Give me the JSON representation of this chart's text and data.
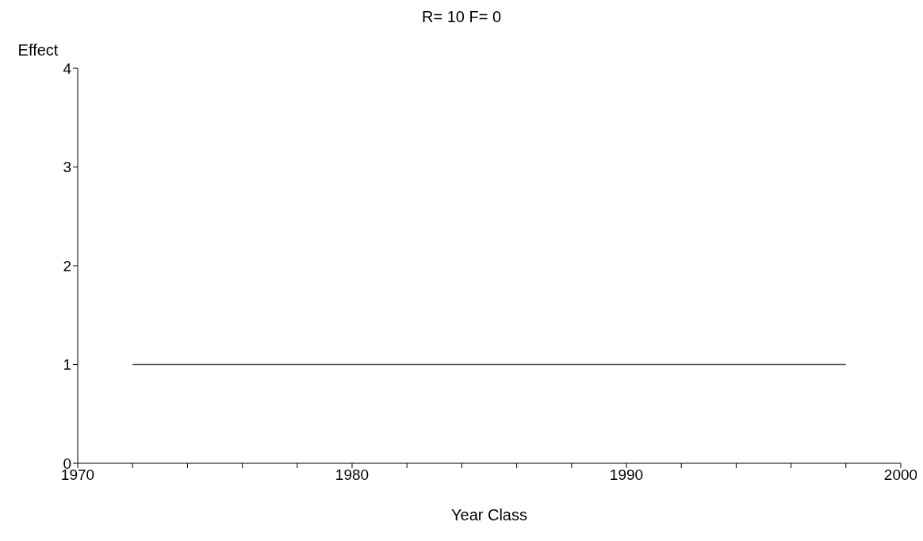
{
  "chart_data": {
    "type": "line",
    "title": "R= 10 F= 0",
    "xlabel": "Year Class",
    "ylabel": "Effect",
    "x": [
      1972,
      1998
    ],
    "series": [
      {
        "color": "#555555",
        "values": [
          1,
          1
        ]
      }
    ],
    "xlim": [
      1970,
      2000
    ],
    "xticks": [
      1970,
      {
        "value": 1972,
        "label": null
      },
      {
        "value": 1974,
        "label": null
      },
      {
        "value": 1976,
        "label": null
      },
      {
        "value": 1978,
        "label": null
      },
      1980,
      {
        "value": 1982,
        "label": null
      },
      {
        "value": 1984,
        "label": null
      },
      {
        "value": 1986,
        "label": null
      },
      {
        "value": 1988,
        "label": null
      },
      1990,
      {
        "value": 1992,
        "label": null
      },
      {
        "value": 1994,
        "label": null
      },
      {
        "value": 1996,
        "label": null
      },
      {
        "value": 1998,
        "label": null
      },
      2000
    ],
    "ylim": [
      0,
      4
    ],
    "yticks": [
      0,
      1,
      2,
      3,
      4
    ],
    "grid": false,
    "legend": false,
    "marker": "none",
    "line_style": "solid"
  }
}
